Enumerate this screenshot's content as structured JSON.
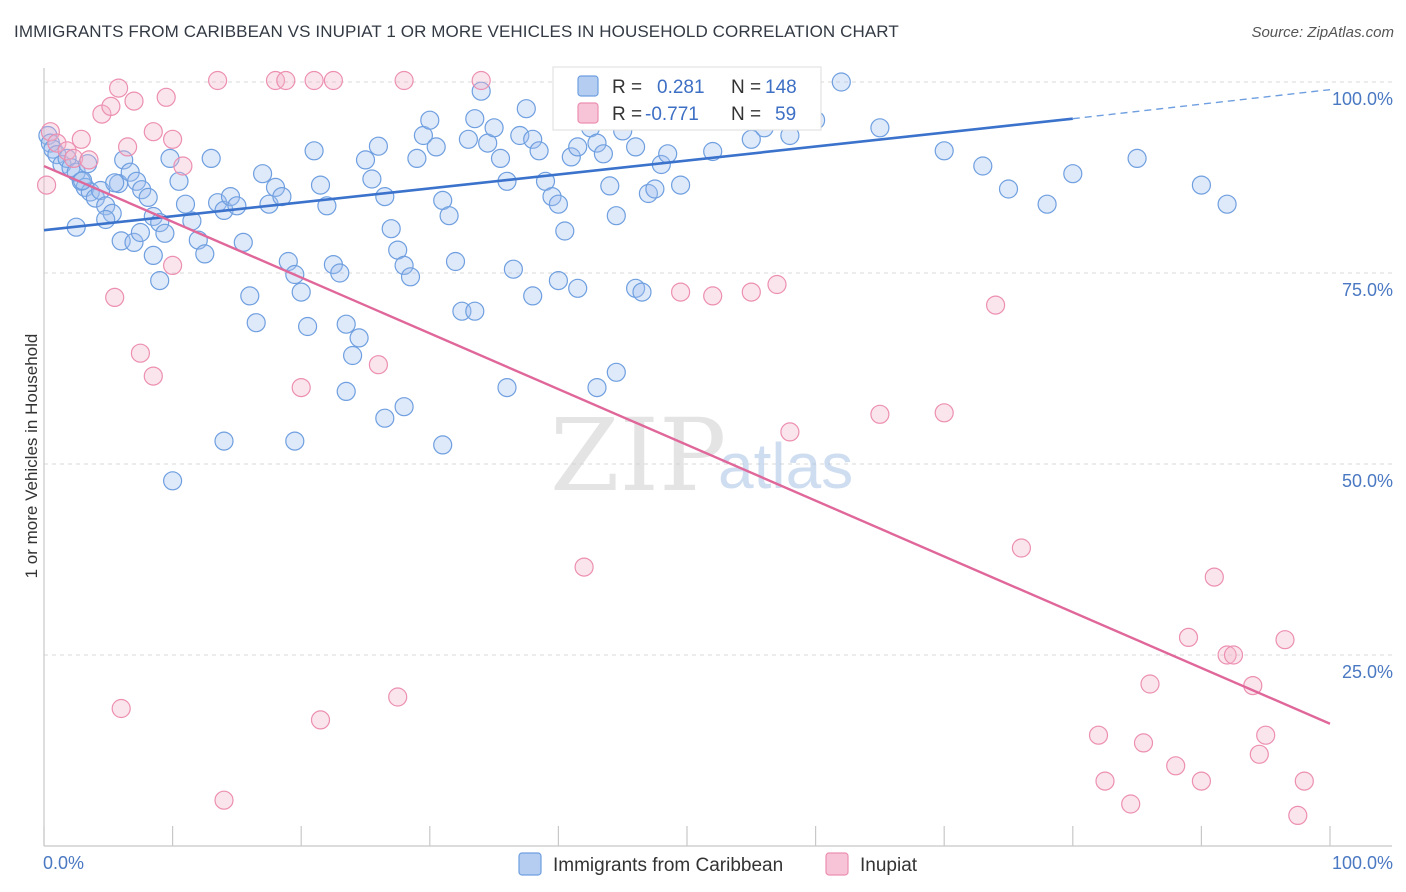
{
  "header": {
    "title": "IMMIGRANTS FROM CARIBBEAN VS INUPIAT 1 OR MORE VEHICLES IN HOUSEHOLD CORRELATION CHART",
    "source": "Source: ZipAtlas.com"
  },
  "watermark": {
    "zip": "ZIP",
    "atlas": "atlas"
  },
  "stats": {
    "r_label": "R =",
    "n_label": "N =",
    "series1": {
      "r": "0.281",
      "n": "148",
      "color": "#6f9fe0"
    },
    "series2": {
      "r": "-0.771",
      "n": "59",
      "color": "#ec8fb0"
    }
  },
  "chart_data": {
    "type": "scatter",
    "title": "IMMIGRANTS FROM CARIBBEAN VS INUPIAT 1 OR MORE VEHICLES IN HOUSEHOLD CORRELATION CHART",
    "xlabel": "",
    "ylabel": "1 or more Vehicles in Household",
    "xlim": [
      0,
      100
    ],
    "ylim": [
      0,
      102
    ],
    "x_ticks": [
      "0.0%",
      "100.0%"
    ],
    "y_ticks": [
      {
        "value": 100,
        "label": "100.0%"
      },
      {
        "value": 75,
        "label": "75.0%"
      },
      {
        "value": 50,
        "label": "50.0%"
      },
      {
        "value": 25,
        "label": "25.0%"
      }
    ],
    "grid": true,
    "legend_position": "bottom-center",
    "series": [
      {
        "name": "Immigrants from Caribbean",
        "color": "#6f9fe0",
        "trend": {
          "x": [
            0,
            80
          ],
          "y": [
            80.6,
            95.2
          ],
          "dashed_extension_to": [
            100,
            99.0
          ]
        },
        "points": [
          [
            0.3,
            93.0
          ],
          [
            0.5,
            92.0
          ],
          [
            0.7,
            91.2
          ],
          [
            1.0,
            90.5
          ],
          [
            1.4,
            89.2
          ],
          [
            1.8,
            90.0
          ],
          [
            2.1,
            88.8
          ],
          [
            2.5,
            88.2
          ],
          [
            2.9,
            87.0
          ],
          [
            3.2,
            86.2
          ],
          [
            3.6,
            85.6
          ],
          [
            4.0,
            84.8
          ],
          [
            4.4,
            85.8
          ],
          [
            4.8,
            83.8
          ],
          [
            5.3,
            82.8
          ],
          [
            5.8,
            86.7
          ],
          [
            6.2,
            89.8
          ],
          [
            6.7,
            88.2
          ],
          [
            7.2,
            87.0
          ],
          [
            7.6,
            85.9
          ],
          [
            8.1,
            84.9
          ],
          [
            8.5,
            82.4
          ],
          [
            9.0,
            81.6
          ],
          [
            9.4,
            80.2
          ],
          [
            2.5,
            81.0
          ],
          [
            3.0,
            87.1
          ],
          [
            3.4,
            89.3
          ],
          [
            4.8,
            82.0
          ],
          [
            5.5,
            86.8
          ],
          [
            6.0,
            79.2
          ],
          [
            7.0,
            79.0
          ],
          [
            7.5,
            80.3
          ],
          [
            8.5,
            77.3
          ],
          [
            9.0,
            74.0
          ],
          [
            9.8,
            90.0
          ],
          [
            10.5,
            87.0
          ],
          [
            11.0,
            84.0
          ],
          [
            11.5,
            81.8
          ],
          [
            12.0,
            79.3
          ],
          [
            12.5,
            77.5
          ],
          [
            13.0,
            90.0
          ],
          [
            13.5,
            84.2
          ],
          [
            14.0,
            83.2
          ],
          [
            14.5,
            85.0
          ],
          [
            15.0,
            83.8
          ],
          [
            15.5,
            79.0
          ],
          [
            16.0,
            72.0
          ],
          [
            16.5,
            68.5
          ],
          [
            17.0,
            88.0
          ],
          [
            17.5,
            84.0
          ],
          [
            18.0,
            86.2
          ],
          [
            18.5,
            85.0
          ],
          [
            19.0,
            76.5
          ],
          [
            19.5,
            74.8
          ],
          [
            20.0,
            72.5
          ],
          [
            20.5,
            68.0
          ],
          [
            21.0,
            91.0
          ],
          [
            21.5,
            86.5
          ],
          [
            22.0,
            83.8
          ],
          [
            22.5,
            76.1
          ],
          [
            23.0,
            75.0
          ],
          [
            23.5,
            68.3
          ],
          [
            24.0,
            64.2
          ],
          [
            24.5,
            66.5
          ],
          [
            25.0,
            89.8
          ],
          [
            25.5,
            87.3
          ],
          [
            26.0,
            91.6
          ],
          [
            26.5,
            85.0
          ],
          [
            27.0,
            80.8
          ],
          [
            27.5,
            78.0
          ],
          [
            28.0,
            76.0
          ],
          [
            28.5,
            74.5
          ],
          [
            29.0,
            90.0
          ],
          [
            29.5,
            93.0
          ],
          [
            30.0,
            95.0
          ],
          [
            30.5,
            91.5
          ],
          [
            31.0,
            84.5
          ],
          [
            31.5,
            82.5
          ],
          [
            32.0,
            76.5
          ],
          [
            32.5,
            70.0
          ],
          [
            33.0,
            92.5
          ],
          [
            33.5,
            95.2
          ],
          [
            34.0,
            98.8
          ],
          [
            34.5,
            92.0
          ],
          [
            35.0,
            94.0
          ],
          [
            35.5,
            90.0
          ],
          [
            36.0,
            87.0
          ],
          [
            36.5,
            75.5
          ],
          [
            37.0,
            93.0
          ],
          [
            37.5,
            96.5
          ],
          [
            38.0,
            92.5
          ],
          [
            38.5,
            91.0
          ],
          [
            39.0,
            87.0
          ],
          [
            39.5,
            85.0
          ],
          [
            40.0,
            84.0
          ],
          [
            40.5,
            80.5
          ],
          [
            41.0,
            90.2
          ],
          [
            41.5,
            91.5
          ],
          [
            42.0,
            96.0
          ],
          [
            42.5,
            94.0
          ],
          [
            43.0,
            92.0
          ],
          [
            43.5,
            90.6
          ],
          [
            44.0,
            86.4
          ],
          [
            44.5,
            82.5
          ],
          [
            45.0,
            93.6
          ],
          [
            45.5,
            95.1
          ],
          [
            46.0,
            91.5
          ],
          [
            46.5,
            97.6
          ],
          [
            47.0,
            85.4
          ],
          [
            47.5,
            86.0
          ],
          [
            48.0,
            89.2
          ],
          [
            48.5,
            90.6
          ],
          [
            49.0,
            96.0
          ],
          [
            49.5,
            86.5
          ],
          [
            50.0,
            98.4
          ],
          [
            51.0,
            95.0
          ],
          [
            52.0,
            90.9
          ],
          [
            53.0,
            99.0
          ],
          [
            54.0,
            96.0
          ],
          [
            55.0,
            92.5
          ],
          [
            56.0,
            94.0
          ],
          [
            57.0,
            97.5
          ],
          [
            58.0,
            93.0
          ],
          [
            60.0,
            95.0
          ],
          [
            62.0,
            100.0
          ],
          [
            65.0,
            94.0
          ],
          [
            70.0,
            91.0
          ],
          [
            73.0,
            89.0
          ],
          [
            75.0,
            86.0
          ],
          [
            78.0,
            84.0
          ],
          [
            80.0,
            88.0
          ],
          [
            85.0,
            90.0
          ],
          [
            90.0,
            86.5
          ],
          [
            92.0,
            84.0
          ],
          [
            10.0,
            47.8
          ],
          [
            14.0,
            53.0
          ],
          [
            19.5,
            53.0
          ],
          [
            23.5,
            59.5
          ],
          [
            26.5,
            56.0
          ],
          [
            28.0,
            57.5
          ],
          [
            31.0,
            52.5
          ],
          [
            33.5,
            70.0
          ],
          [
            36.0,
            60.0
          ],
          [
            38.0,
            72.0
          ],
          [
            41.5,
            73.0
          ],
          [
            43.0,
            60.0
          ],
          [
            44.5,
            62.0
          ],
          [
            46.0,
            73.0
          ],
          [
            46.5,
            72.5
          ],
          [
            40.0,
            74.0
          ]
        ]
      },
      {
        "name": "Inupiat",
        "color": "#ec8fb0",
        "trend": {
          "x": [
            0,
            100
          ],
          "y": [
            89.0,
            16.0
          ]
        },
        "points": [
          [
            0.2,
            86.5
          ],
          [
            0.5,
            93.5
          ],
          [
            1.0,
            92.0
          ],
          [
            1.8,
            91.0
          ],
          [
            2.3,
            90.0
          ],
          [
            2.9,
            92.5
          ],
          [
            3.5,
            89.8
          ],
          [
            4.5,
            95.8
          ],
          [
            5.2,
            96.8
          ],
          [
            5.8,
            99.2
          ],
          [
            6.5,
            91.5
          ],
          [
            7.0,
            97.5
          ],
          [
            8.5,
            93.5
          ],
          [
            9.5,
            98.0
          ],
          [
            10.0,
            92.5
          ],
          [
            10.8,
            89.0
          ],
          [
            13.5,
            100.2
          ],
          [
            18.0,
            100.2
          ],
          [
            18.8,
            100.2
          ],
          [
            21.0,
            100.2
          ],
          [
            22.5,
            100.2
          ],
          [
            28.0,
            100.2
          ],
          [
            34.0,
            100.2
          ],
          [
            40.5,
            100.0
          ],
          [
            5.5,
            71.8
          ],
          [
            7.5,
            64.5
          ],
          [
            8.5,
            61.5
          ],
          [
            10.0,
            76.0
          ],
          [
            20.0,
            60.0
          ],
          [
            26.0,
            63.0
          ],
          [
            42.0,
            36.5
          ],
          [
            49.5,
            72.5
          ],
          [
            52.0,
            72.0
          ],
          [
            55.0,
            72.5
          ],
          [
            57.0,
            73.5
          ],
          [
            58.0,
            54.2
          ],
          [
            65.0,
            56.5
          ],
          [
            70.0,
            56.7
          ],
          [
            74.0,
            70.8
          ],
          [
            76.0,
            39.0
          ],
          [
            82.0,
            14.5
          ],
          [
            82.5,
            8.5
          ],
          [
            84.5,
            5.5
          ],
          [
            85.5,
            13.5
          ],
          [
            86.0,
            21.2
          ],
          [
            88.0,
            10.5
          ],
          [
            89.0,
            27.3
          ],
          [
            90.0,
            8.5
          ],
          [
            91.0,
            35.2
          ],
          [
            92.0,
            25.0
          ],
          [
            92.5,
            25.0
          ],
          [
            94.0,
            21.0
          ],
          [
            94.5,
            12.0
          ],
          [
            95.0,
            14.5
          ],
          [
            96.5,
            27.0
          ],
          [
            97.5,
            4.0
          ],
          [
            98.0,
            8.5
          ],
          [
            6.0,
            18.0
          ],
          [
            14.0,
            6.0
          ],
          [
            21.5,
            16.5
          ],
          [
            27.5,
            19.5
          ]
        ]
      }
    ]
  },
  "axis": {
    "y_label": "1 or more Vehicles in Household",
    "x_left": "0.0%",
    "x_right": "100.0%"
  },
  "legend": {
    "item1": "Immigrants from Caribbean",
    "item2": "Inupiat"
  }
}
